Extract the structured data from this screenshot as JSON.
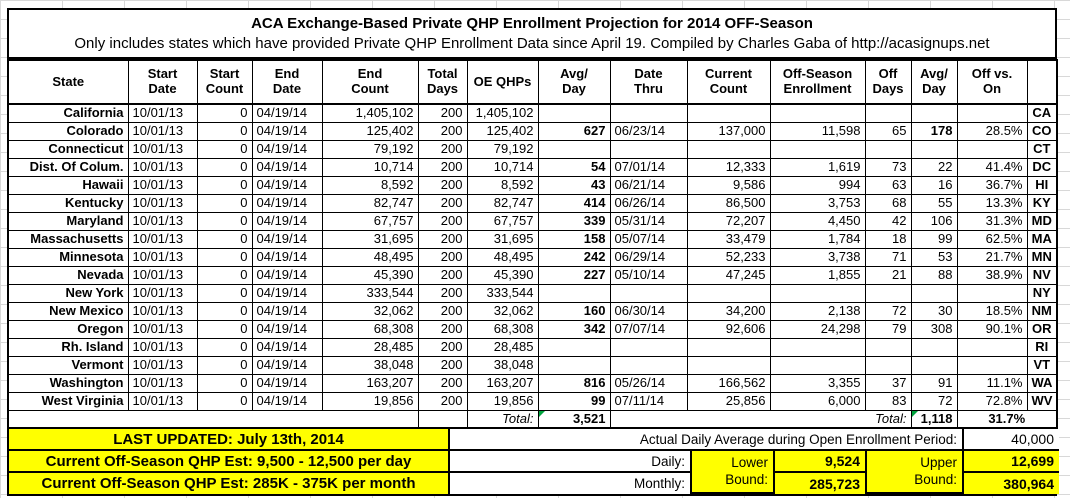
{
  "title": {
    "line1": "ACA Exchange-Based Private QHP Enrollment Projection for 2014 OFF-Season",
    "line2": "Only includes states which have provided Private QHP Enrollment Data since April 19. Compiled by Charles Gaba of http://acasignups.net"
  },
  "table": {
    "columns": [
      {
        "key": "state",
        "label": "State"
      },
      {
        "key": "start_date",
        "label": "Start\nDate"
      },
      {
        "key": "start_count",
        "label": "Start\nCount"
      },
      {
        "key": "end_date",
        "label": "End\nDate"
      },
      {
        "key": "end_count",
        "label": "End\nCount"
      },
      {
        "key": "total_days",
        "label": "Total\nDays"
      },
      {
        "key": "oe_qhps",
        "label": "OE QHPs"
      },
      {
        "key": "avg_day",
        "label": "Avg/\nDay"
      },
      {
        "key": "date_thru",
        "label": "Date\nThru"
      },
      {
        "key": "current_count",
        "label": "Current\nCount"
      },
      {
        "key": "off_season",
        "label": "Off-Season\nEnrollment"
      },
      {
        "key": "off_days",
        "label": "Off\nDays"
      },
      {
        "key": "avg_day2",
        "label": "Avg/\nDay"
      },
      {
        "key": "off_vs_on",
        "label": "Off vs.\nOn"
      },
      {
        "key": "abbr",
        "label": ""
      }
    ],
    "rows": [
      {
        "state": "California",
        "start_date": "10/01/13",
        "start_count": "0",
        "end_date": "04/19/14",
        "end_count": "1,405,102",
        "total_days": "200",
        "oe_qhps": "1,405,102",
        "avg_day": "",
        "date_thru": "",
        "current_count": "",
        "off_season": "",
        "off_days": "",
        "avg_day2": "",
        "off_vs_on": "",
        "abbr": "CA"
      },
      {
        "state": "Colorado",
        "start_date": "10/01/13",
        "start_count": "0",
        "end_date": "04/19/14",
        "end_count": "125,402",
        "total_days": "200",
        "oe_qhps": "125,402",
        "avg_day": "627",
        "date_thru": "06/23/14",
        "current_count": "137,000",
        "off_season": "11,598",
        "off_days": "65",
        "avg_day2": "178",
        "off_vs_on": "28.5%",
        "abbr": "CO"
      },
      {
        "state": "Connecticut",
        "start_date": "10/01/13",
        "start_count": "0",
        "end_date": "04/19/14",
        "end_count": "79,192",
        "total_days": "200",
        "oe_qhps": "79,192",
        "avg_day": "",
        "date_thru": "",
        "current_count": "",
        "off_season": "",
        "off_days": "",
        "avg_day2": "",
        "off_vs_on": "",
        "abbr": "CT"
      },
      {
        "state": "Dist. Of Colum.",
        "start_date": "10/01/13",
        "start_count": "0",
        "end_date": "04/19/14",
        "end_count": "10,714",
        "total_days": "200",
        "oe_qhps": "10,714",
        "avg_day": "54",
        "date_thru": "07/01/14",
        "current_count": "12,333",
        "off_season": "1,619",
        "off_days": "73",
        "avg_day2": "22",
        "off_vs_on": "41.4%",
        "abbr": "DC"
      },
      {
        "state": "Hawaii",
        "start_date": "10/01/13",
        "start_count": "0",
        "end_date": "04/19/14",
        "end_count": "8,592",
        "total_days": "200",
        "oe_qhps": "8,592",
        "avg_day": "43",
        "date_thru": "06/21/14",
        "current_count": "9,586",
        "off_season": "994",
        "off_days": "63",
        "avg_day2": "16",
        "off_vs_on": "36.7%",
        "abbr": "HI"
      },
      {
        "state": "Kentucky",
        "start_date": "10/01/13",
        "start_count": "0",
        "end_date": "04/19/14",
        "end_count": "82,747",
        "total_days": "200",
        "oe_qhps": "82,747",
        "avg_day": "414",
        "date_thru": "06/26/14",
        "current_count": "86,500",
        "off_season": "3,753",
        "off_days": "68",
        "avg_day2": "55",
        "off_vs_on": "13.3%",
        "abbr": "KY"
      },
      {
        "state": "Maryland",
        "start_date": "10/01/13",
        "start_count": "0",
        "end_date": "04/19/14",
        "end_count": "67,757",
        "total_days": "200",
        "oe_qhps": "67,757",
        "avg_day": "339",
        "date_thru": "05/31/14",
        "current_count": "72,207",
        "off_season": "4,450",
        "off_days": "42",
        "avg_day2": "106",
        "off_vs_on": "31.3%",
        "abbr": "MD"
      },
      {
        "state": "Massachusetts",
        "start_date": "10/01/13",
        "start_count": "0",
        "end_date": "04/19/14",
        "end_count": "31,695",
        "total_days": "200",
        "oe_qhps": "31,695",
        "avg_day": "158",
        "date_thru": "05/07/14",
        "current_count": "33,479",
        "off_season": "1,784",
        "off_days": "18",
        "avg_day2": "99",
        "off_vs_on": "62.5%",
        "abbr": "MA"
      },
      {
        "state": "Minnesota",
        "start_date": "10/01/13",
        "start_count": "0",
        "end_date": "04/19/14",
        "end_count": "48,495",
        "total_days": "200",
        "oe_qhps": "48,495",
        "avg_day": "242",
        "date_thru": "06/29/14",
        "current_count": "52,233",
        "off_season": "3,738",
        "off_days": "71",
        "avg_day2": "53",
        "off_vs_on": "21.7%",
        "abbr": "MN"
      },
      {
        "state": "Nevada",
        "start_date": "10/01/13",
        "start_count": "0",
        "end_date": "04/19/14",
        "end_count": "45,390",
        "total_days": "200",
        "oe_qhps": "45,390",
        "avg_day": "227",
        "date_thru": "05/10/14",
        "current_count": "47,245",
        "off_season": "1,855",
        "off_days": "21",
        "avg_day2": "88",
        "off_vs_on": "38.9%",
        "abbr": "NV"
      },
      {
        "state": "New York",
        "start_date": "10/01/13",
        "start_count": "0",
        "end_date": "04/19/14",
        "end_count": "333,544",
        "total_days": "200",
        "oe_qhps": "333,544",
        "avg_day": "",
        "date_thru": "",
        "current_count": "",
        "off_season": "",
        "off_days": "",
        "avg_day2": "",
        "off_vs_on": "",
        "abbr": "NY"
      },
      {
        "state": "New Mexico",
        "start_date": "10/01/13",
        "start_count": "0",
        "end_date": "04/19/14",
        "end_count": "32,062",
        "total_days": "200",
        "oe_qhps": "32,062",
        "avg_day": "160",
        "date_thru": "06/30/14",
        "current_count": "34,200",
        "off_season": "2,138",
        "off_days": "72",
        "avg_day2": "30",
        "off_vs_on": "18.5%",
        "abbr": "NM"
      },
      {
        "state": "Oregon",
        "start_date": "10/01/13",
        "start_count": "0",
        "end_date": "04/19/14",
        "end_count": "68,308",
        "total_days": "200",
        "oe_qhps": "68,308",
        "avg_day": "342",
        "date_thru": "07/07/14",
        "current_count": "92,606",
        "off_season": "24,298",
        "off_days": "79",
        "avg_day2": "308",
        "off_vs_on": "90.1%",
        "abbr": "OR"
      },
      {
        "state": "Rh. Island",
        "start_date": "10/01/13",
        "start_count": "0",
        "end_date": "04/19/14",
        "end_count": "28,485",
        "total_days": "200",
        "oe_qhps": "28,485",
        "avg_day": "",
        "date_thru": "",
        "current_count": "",
        "off_season": "",
        "off_days": "",
        "avg_day2": "",
        "off_vs_on": "",
        "abbr": "RI"
      },
      {
        "state": "Vermont",
        "start_date": "10/01/13",
        "start_count": "0",
        "end_date": "04/19/14",
        "end_count": "38,048",
        "total_days": "200",
        "oe_qhps": "38,048",
        "avg_day": "",
        "date_thru": "",
        "current_count": "",
        "off_season": "",
        "off_days": "",
        "avg_day2": "",
        "off_vs_on": "",
        "abbr": "VT"
      },
      {
        "state": "Washington",
        "start_date": "10/01/13",
        "start_count": "0",
        "end_date": "04/19/14",
        "end_count": "163,207",
        "total_days": "200",
        "oe_qhps": "163,207",
        "avg_day": "816",
        "date_thru": "05/26/14",
        "current_count": "166,562",
        "off_season": "3,355",
        "off_days": "37",
        "avg_day2": "91",
        "off_vs_on": "11.1%",
        "abbr": "WA"
      },
      {
        "state": "West Virginia",
        "start_date": "10/01/13",
        "start_count": "0",
        "end_date": "04/19/14",
        "end_count": "19,856",
        "total_days": "200",
        "oe_qhps": "19,856",
        "avg_day": "99",
        "date_thru": "07/11/14",
        "current_count": "25,856",
        "off_season": "6,000",
        "off_days": "83",
        "avg_day2": "72",
        "off_vs_on": "72.8%",
        "abbr": "WV"
      }
    ],
    "total": {
      "label1": "Total:",
      "avg_day": "3,521",
      "label2": "Total:",
      "avg_day2": "1,118",
      "off_vs_on": "31.7%"
    }
  },
  "footer": {
    "last_updated": "LAST UPDATED: July 13th, 2014",
    "est_daily": "Current Off-Season QHP Est: 9,500 - 12,500 per day",
    "est_monthly": "Current Off-Season QHP Est: 285K - 375K per month",
    "actual_daily_label": "Actual Daily Average during Open Enrollment Period:",
    "actual_daily_value": "40,000",
    "daily_label": "Daily:",
    "monthly_label": "Monthly:",
    "lower_bound_label": "Lower Bound:",
    "upper_bound_label": "Upper Bound:",
    "daily_lower": "9,524",
    "daily_upper": "12,699",
    "monthly_lower": "285,723",
    "monthly_upper": "380,964"
  },
  "colors": {
    "highlight_yellow": "#ffff00",
    "flag_green": "#00a33d",
    "border_black": "#000000",
    "gridline_gray": "#d8d8d8"
  }
}
